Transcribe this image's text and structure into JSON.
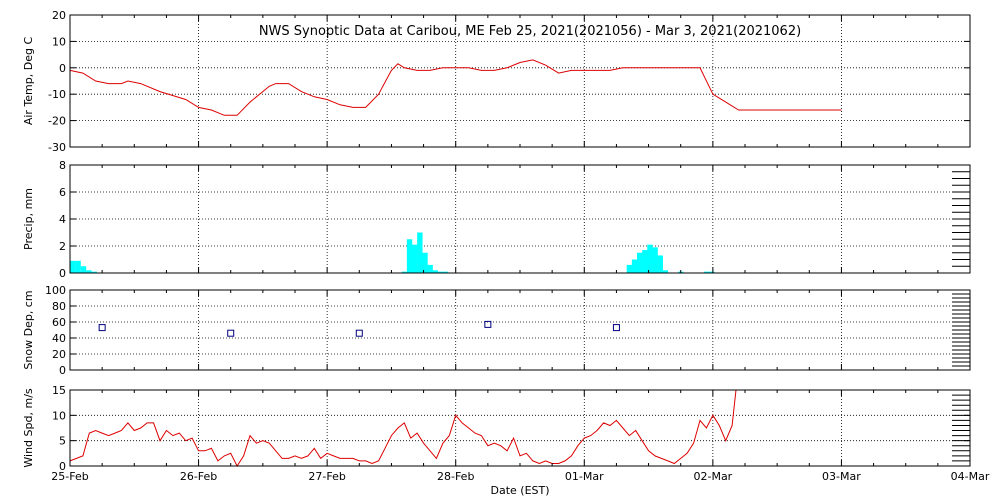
{
  "title": "NWS Synoptic Data at Caribou, ME   Feb 25, 2021(2021056) - Mar  3, 2021(2021062)",
  "xlabel": "Date (EST)",
  "date_ticks": [
    "25-Feb",
    "26-Feb",
    "27-Feb",
    "28-Feb",
    "01-Mar",
    "02-Mar",
    "03-Mar",
    "04-Mar"
  ],
  "colors": {
    "line": "#dd0000",
    "precip": "#00ffff",
    "snow_marker": "#000080",
    "axis": "#000000"
  },
  "chart_data": [
    {
      "type": "line",
      "ylabel": "Air Temp, Deg C",
      "ylim": [
        -30,
        20
      ],
      "yticks": [
        -30,
        -20,
        -10,
        0,
        10,
        20
      ],
      "grid": true,
      "x_units": "days since 25-Feb 00:00 EST",
      "x": [
        0,
        0.1,
        0.2,
        0.3,
        0.4,
        0.45,
        0.55,
        0.7,
        0.9,
        1.0,
        1.1,
        1.2,
        1.3,
        1.4,
        1.55,
        1.6,
        1.7,
        1.8,
        1.9,
        2.0,
        2.1,
        2.2,
        2.3,
        2.4,
        2.5,
        2.55,
        2.6,
        2.7,
        2.8,
        2.9,
        3.0,
        3.1,
        3.2,
        3.3,
        3.4,
        3.5,
        3.6,
        3.7,
        3.8,
        3.9,
        4.0,
        4.1,
        4.2,
        4.3,
        4.4,
        4.5,
        4.6,
        4.7,
        4.8,
        4.9,
        5.0,
        5.1,
        5.2,
        5.5,
        6.0
      ],
      "values": [
        -1,
        -2,
        -5,
        -6,
        -6,
        -5,
        -6,
        -9,
        -12,
        -15,
        -16,
        -18,
        -18,
        -13,
        -7,
        -6,
        -6,
        -9,
        -11,
        -12,
        -14,
        -15,
        -15,
        -10,
        -1,
        1.5,
        0,
        -1,
        -1,
        0,
        0,
        0,
        -1,
        -1,
        0,
        2,
        3,
        1,
        -2,
        -1,
        -1,
        -1,
        -1,
        0,
        0,
        0,
        0,
        0,
        0,
        0,
        -10,
        -13,
        -16,
        -16,
        -16
      ]
    },
    {
      "type": "bar",
      "ylabel": "Precip, mm",
      "ylim": [
        0,
        8
      ],
      "yticks": [
        0,
        2,
        4,
        6,
        8
      ],
      "grid": true,
      "x_units": "days since 25-Feb 00:00 EST",
      "bar_width_days": 0.042,
      "x": [
        0.0,
        0.042,
        0.084,
        0.126,
        0.168,
        2.58,
        2.62,
        2.66,
        2.7,
        2.74,
        2.78,
        2.82,
        2.86,
        2.9,
        4.33,
        4.37,
        4.41,
        4.45,
        4.49,
        4.53,
        4.57,
        4.61,
        4.73,
        4.93,
        4.97
      ],
      "values": [
        0.9,
        0.9,
        0.5,
        0.2,
        0.1,
        0.1,
        2.5,
        2.1,
        3.0,
        1.5,
        0.6,
        0.2,
        0.1,
        0.1,
        0.6,
        1.0,
        1.5,
        1.7,
        2.1,
        1.9,
        1.3,
        0.2,
        0.1,
        0.1,
        0.1
      ]
    },
    {
      "type": "scatter",
      "ylabel": "Snow Dep, cm",
      "ylim": [
        0,
        100
      ],
      "yticks": [
        0,
        20,
        40,
        60,
        80,
        100
      ],
      "grid": true,
      "x_units": "days since 25-Feb 00:00 EST",
      "x": [
        0.25,
        1.25,
        2.25,
        3.25,
        4.25
      ],
      "values": [
        53,
        46,
        46,
        57,
        53
      ]
    },
    {
      "type": "line",
      "ylabel": "Wind Spd, m/s",
      "ylim": [
        0,
        15
      ],
      "yticks": [
        0,
        5,
        10,
        15
      ],
      "grid": true,
      "x_units": "days since 25-Feb 00:00 EST",
      "x": [
        0,
        0.05,
        0.1,
        0.15,
        0.2,
        0.25,
        0.3,
        0.35,
        0.4,
        0.45,
        0.5,
        0.55,
        0.6,
        0.65,
        0.7,
        0.75,
        0.8,
        0.85,
        0.9,
        0.95,
        1.0,
        1.05,
        1.1,
        1.15,
        1.2,
        1.25,
        1.3,
        1.35,
        1.4,
        1.45,
        1.5,
        1.55,
        1.6,
        1.65,
        1.7,
        1.75,
        1.8,
        1.85,
        1.9,
        1.95,
        2.0,
        2.05,
        2.1,
        2.15,
        2.2,
        2.25,
        2.3,
        2.35,
        2.4,
        2.45,
        2.5,
        2.55,
        2.6,
        2.65,
        2.7,
        2.75,
        2.8,
        2.85,
        2.9,
        2.95,
        3.0,
        3.05,
        3.1,
        3.15,
        3.2,
        3.25,
        3.3,
        3.35,
        3.4,
        3.45,
        3.5,
        3.55,
        3.6,
        3.65,
        3.7,
        3.75,
        3.8,
        3.85,
        3.9,
        3.95,
        4.0,
        4.05,
        4.1,
        4.15,
        4.2,
        4.25,
        4.3,
        4.35,
        4.4,
        4.45,
        4.5,
        4.55,
        4.6,
        4.65,
        4.7,
        4.75,
        4.8,
        4.85,
        4.9,
        4.95,
        5.0,
        5.05,
        5.1,
        5.15,
        5.18
      ],
      "values": [
        1,
        1.5,
        2,
        6.5,
        7,
        6.5,
        6,
        6.5,
        7,
        8.5,
        7,
        7.5,
        8.5,
        8.5,
        5,
        7,
        6,
        6.5,
        5,
        5.5,
        3,
        3,
        3.5,
        1,
        2,
        2.5,
        0,
        2,
        6,
        4.5,
        5,
        4.5,
        3,
        1.5,
        1.5,
        2,
        1.5,
        2,
        3.5,
        1.5,
        2.5,
        2,
        1.5,
        1.5,
        1.5,
        1,
        1,
        0.5,
        1,
        3.5,
        6,
        7.5,
        8.5,
        5.5,
        6.5,
        4.5,
        3,
        1.5,
        4.5,
        6,
        10,
        8.5,
        7.5,
        6.5,
        6,
        4,
        4.5,
        4,
        3,
        5.5,
        2,
        2.5,
        1,
        0.5,
        1,
        0.5,
        0.5,
        1,
        2,
        4,
        5.5,
        6,
        7,
        8.5,
        8,
        9,
        7.5,
        6,
        7,
        5,
        3,
        2,
        1.5,
        1,
        0.5,
        1.5,
        2.5,
        4.5,
        9,
        7.5,
        10,
        8,
        5,
        8,
        15
      ]
    }
  ]
}
